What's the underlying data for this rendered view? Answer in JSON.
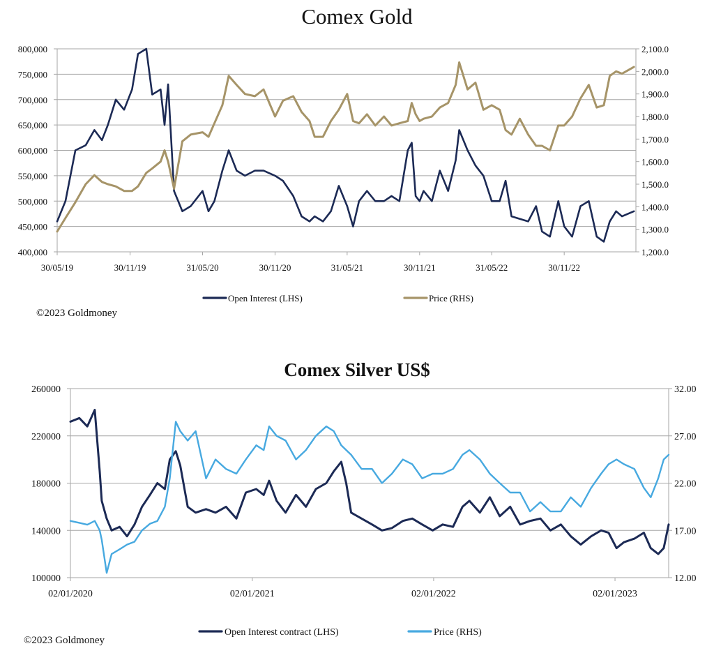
{
  "charts_text": {
    "gold_title": "Comex Gold",
    "silver_title": "Comex Silver US$",
    "gold_copyright": "©2023 Goldmoney",
    "silver_copyright": "©2023 Goldmoney"
  },
  "colors": {
    "gold_oi": "#1c2a55",
    "gold_price": "#a69468",
    "silver_oi": "#1c2a55",
    "silver_price": "#47a9e0",
    "grid": "#a6a6a6"
  },
  "chart_data": [
    {
      "type": "line",
      "title": "Comex Gold",
      "x_ticks": [
        "30/05/19",
        "30/11/19",
        "31/05/20",
        "30/11/20",
        "31/05/21",
        "30/11/21",
        "31/05/22",
        "30/11/22"
      ],
      "x_range": [
        "30/05/19",
        "30/05/23"
      ],
      "left_axis": {
        "ticks": [
          "400,000",
          "450,000",
          "500,000",
          "550,000",
          "600,000",
          "650,000",
          "700,000",
          "750,000",
          "800,000"
        ],
        "ylim": [
          400000,
          800000
        ]
      },
      "right_axis": {
        "ticks": [
          "1,200.0",
          "1,300.0",
          "1,400.0",
          "1,500.0",
          "1,600.0",
          "1,700.0",
          "1,800.0",
          "1,900.0",
          "2,000.0",
          "2,100.0"
        ],
        "ylim": [
          1200,
          2100
        ]
      },
      "grid": true,
      "legend_position": "bottom-center",
      "series": [
        {
          "name": "Open Interest (LHS)",
          "axis": "left",
          "x": [
            "2019-05-30",
            "2019-06-20",
            "2019-07-15",
            "2019-08-10",
            "2019-09-01",
            "2019-09-20",
            "2019-10-05",
            "2019-10-25",
            "2019-11-15",
            "2019-12-05",
            "2019-12-20",
            "2020-01-10",
            "2020-01-25",
            "2020-02-15",
            "2020-02-25",
            "2020-03-05",
            "2020-03-20",
            "2020-04-10",
            "2020-05-01",
            "2020-05-31",
            "2020-06-15",
            "2020-06-30",
            "2020-07-20",
            "2020-08-05",
            "2020-08-25",
            "2020-09-15",
            "2020-10-10",
            "2020-11-01",
            "2020-11-30",
            "2020-12-20",
            "2021-01-15",
            "2021-02-05",
            "2021-02-25",
            "2021-03-10",
            "2021-03-31",
            "2021-04-20",
            "2021-05-10",
            "2021-05-31",
            "2021-06-15",
            "2021-06-30",
            "2021-07-20",
            "2021-08-10",
            "2021-09-01",
            "2021-09-20",
            "2021-10-10",
            "2021-10-31",
            "2021-11-10",
            "2021-11-20",
            "2021-11-30",
            "2021-12-10",
            "2021-12-31",
            "2022-01-20",
            "2022-02-10",
            "2022-03-01",
            "2022-03-10",
            "2022-03-31",
            "2022-04-20",
            "2022-05-10",
            "2022-05-31",
            "2022-06-20",
            "2022-07-05",
            "2022-07-20",
            "2022-08-10",
            "2022-08-31",
            "2022-09-20",
            "2022-10-05",
            "2022-10-25",
            "2022-11-15",
            "2022-11-30",
            "2022-12-20",
            "2023-01-10",
            "2023-01-31",
            "2023-02-20",
            "2023-03-10",
            "2023-03-25",
            "2023-04-10",
            "2023-04-25",
            "2023-05-25"
          ],
          "values": [
            460000,
            500000,
            600000,
            610000,
            640000,
            620000,
            650000,
            700000,
            680000,
            720000,
            790000,
            800000,
            710000,
            720000,
            650000,
            730000,
            520000,
            480000,
            490000,
            520000,
            480000,
            500000,
            560000,
            600000,
            560000,
            550000,
            560000,
            560000,
            550000,
            540000,
            510000,
            470000,
            460000,
            470000,
            460000,
            480000,
            530000,
            490000,
            450000,
            500000,
            520000,
            500000,
            500000,
            510000,
            500000,
            600000,
            615000,
            510000,
            500000,
            520000,
            500000,
            560000,
            520000,
            580000,
            640000,
            600000,
            570000,
            550000,
            500000,
            500000,
            540000,
            470000,
            465000,
            460000,
            490000,
            440000,
            430000,
            500000,
            450000,
            430000,
            490000,
            500000,
            430000,
            420000,
            460000,
            480000,
            470000,
            480000
          ]
        },
        {
          "name": "Price (RHS)",
          "axis": "right",
          "x": [
            "2019-05-30",
            "2019-06-20",
            "2019-07-15",
            "2019-08-10",
            "2019-09-01",
            "2019-09-20",
            "2019-10-05",
            "2019-10-25",
            "2019-11-15",
            "2019-12-05",
            "2019-12-20",
            "2020-01-10",
            "2020-01-25",
            "2020-02-15",
            "2020-02-25",
            "2020-03-05",
            "2020-03-20",
            "2020-04-10",
            "2020-05-01",
            "2020-05-31",
            "2020-06-15",
            "2020-06-30",
            "2020-07-20",
            "2020-08-05",
            "2020-08-25",
            "2020-09-15",
            "2020-10-10",
            "2020-11-01",
            "2020-11-30",
            "2020-12-20",
            "2021-01-15",
            "2021-02-05",
            "2021-02-25",
            "2021-03-10",
            "2021-03-31",
            "2021-04-20",
            "2021-05-10",
            "2021-05-31",
            "2021-06-15",
            "2021-06-30",
            "2021-07-20",
            "2021-08-10",
            "2021-09-01",
            "2021-09-20",
            "2021-10-10",
            "2021-10-31",
            "2021-11-10",
            "2021-11-20",
            "2021-11-30",
            "2021-12-10",
            "2021-12-31",
            "2022-01-20",
            "2022-02-10",
            "2022-03-01",
            "2022-03-10",
            "2022-03-31",
            "2022-04-20",
            "2022-05-10",
            "2022-05-31",
            "2022-06-20",
            "2022-07-05",
            "2022-07-20",
            "2022-08-10",
            "2022-08-31",
            "2022-09-20",
            "2022-10-05",
            "2022-10-25",
            "2022-11-15",
            "2022-11-30",
            "2022-12-20",
            "2023-01-10",
            "2023-01-31",
            "2023-02-20",
            "2023-03-10",
            "2023-03-25",
            "2023-04-10",
            "2023-04-25",
            "2023-05-25"
          ],
          "values": [
            1290,
            1350,
            1420,
            1500,
            1540,
            1510,
            1500,
            1490,
            1470,
            1470,
            1490,
            1550,
            1570,
            1600,
            1650,
            1600,
            1480,
            1690,
            1720,
            1730,
            1710,
            1770,
            1850,
            1980,
            1940,
            1900,
            1890,
            1920,
            1800,
            1870,
            1890,
            1820,
            1780,
            1710,
            1710,
            1780,
            1830,
            1900,
            1780,
            1770,
            1810,
            1760,
            1800,
            1760,
            1770,
            1780,
            1860,
            1810,
            1780,
            1790,
            1800,
            1840,
            1860,
            1940,
            2040,
            1920,
            1950,
            1830,
            1850,
            1830,
            1740,
            1720,
            1790,
            1720,
            1670,
            1670,
            1650,
            1760,
            1760,
            1800,
            1880,
            1940,
            1840,
            1850,
            1980,
            2000,
            1990,
            2020
          ]
        }
      ]
    },
    {
      "type": "line",
      "title": "Comex Silver US$",
      "x_ticks": [
        "02/01/2020",
        "02/01/2021",
        "02/01/2022",
        "02/01/2023"
      ],
      "x_range": [
        "2020-01-02",
        "2023-04-20"
      ],
      "left_axis": {
        "ticks": [
          "100000",
          "140000",
          "180000",
          "220000",
          "260000"
        ],
        "ylim": [
          100000,
          260000
        ]
      },
      "right_axis": {
        "ticks": [
          "12.00",
          "17.00",
          "22.00",
          "27.00",
          "32.00"
        ],
        "ylim": [
          12,
          32
        ]
      },
      "grid": true,
      "legend_position": "bottom-center",
      "series": [
        {
          "name": "Open Interest contract (LHS)",
          "axis": "left",
          "x": [
            "2020-01-02",
            "2020-01-20",
            "2020-02-05",
            "2020-02-20",
            "2020-03-01",
            "2020-03-05",
            "2020-03-15",
            "2020-03-25",
            "2020-04-10",
            "2020-04-25",
            "2020-05-10",
            "2020-05-25",
            "2020-06-10",
            "2020-06-25",
            "2020-07-10",
            "2020-07-20",
            "2020-08-01",
            "2020-08-10",
            "2020-08-25",
            "2020-09-10",
            "2020-10-01",
            "2020-10-20",
            "2020-11-10",
            "2020-12-01",
            "2020-12-20",
            "2021-01-10",
            "2021-01-25",
            "2021-02-05",
            "2021-02-20",
            "2021-03-10",
            "2021-03-31",
            "2021-04-20",
            "2021-05-10",
            "2021-05-31",
            "2021-06-15",
            "2021-06-30",
            "2021-07-10",
            "2021-07-20",
            "2021-08-10",
            "2021-08-31",
            "2021-09-20",
            "2021-10-10",
            "2021-11-01",
            "2021-11-20",
            "2021-12-10",
            "2021-12-31",
            "2022-01-20",
            "2022-02-10",
            "2022-03-01",
            "2022-03-15",
            "2022-04-05",
            "2022-04-25",
            "2022-05-15",
            "2022-06-05",
            "2022-06-25",
            "2022-07-15",
            "2022-08-05",
            "2022-08-25",
            "2022-09-15",
            "2022-10-05",
            "2022-10-25",
            "2022-11-15",
            "2022-12-05",
            "2022-12-20",
            "2023-01-05",
            "2023-01-20",
            "2023-02-10",
            "2023-03-01",
            "2023-03-15",
            "2023-03-30",
            "2023-04-10",
            "2023-04-20"
          ],
          "values": [
            232000,
            235000,
            228000,
            242000,
            190000,
            165000,
            150000,
            140000,
            143000,
            135000,
            145000,
            160000,
            170000,
            180000,
            175000,
            200000,
            207000,
            195000,
            160000,
            155000,
            158000,
            155000,
            160000,
            150000,
            172000,
            175000,
            170000,
            182000,
            165000,
            155000,
            170000,
            160000,
            175000,
            180000,
            190000,
            198000,
            180000,
            155000,
            150000,
            145000,
            140000,
            142000,
            148000,
            150000,
            145000,
            140000,
            145000,
            143000,
            160000,
            165000,
            155000,
            168000,
            152000,
            160000,
            145000,
            148000,
            150000,
            140000,
            145000,
            135000,
            128000,
            135000,
            140000,
            138000,
            125000,
            130000,
            133000,
            138000,
            125000,
            120000,
            125000,
            145000
          ]
        },
        {
          "name": "Price (RHS)",
          "axis": "right",
          "x": [
            "2020-01-02",
            "2020-01-20",
            "2020-02-05",
            "2020-02-20",
            "2020-03-01",
            "2020-03-05",
            "2020-03-15",
            "2020-03-25",
            "2020-04-10",
            "2020-04-25",
            "2020-05-10",
            "2020-05-25",
            "2020-06-10",
            "2020-06-25",
            "2020-07-10",
            "2020-07-20",
            "2020-08-01",
            "2020-08-10",
            "2020-08-25",
            "2020-09-10",
            "2020-10-01",
            "2020-10-20",
            "2020-11-10",
            "2020-12-01",
            "2020-12-20",
            "2021-01-10",
            "2021-01-25",
            "2021-02-05",
            "2021-02-20",
            "2021-03-10",
            "2021-03-31",
            "2021-04-20",
            "2021-05-10",
            "2021-05-31",
            "2021-06-15",
            "2021-06-30",
            "2021-07-10",
            "2021-07-20",
            "2021-08-10",
            "2021-08-31",
            "2021-09-20",
            "2021-10-10",
            "2021-11-01",
            "2021-11-20",
            "2021-12-10",
            "2021-12-31",
            "2022-01-20",
            "2022-02-10",
            "2022-03-01",
            "2022-03-15",
            "2022-04-05",
            "2022-04-25",
            "2022-05-15",
            "2022-06-05",
            "2022-06-25",
            "2022-07-15",
            "2022-08-05",
            "2022-08-25",
            "2022-09-15",
            "2022-10-05",
            "2022-10-25",
            "2022-11-15",
            "2022-12-05",
            "2022-12-20",
            "2023-01-05",
            "2023-01-20",
            "2023-02-10",
            "2023-03-01",
            "2023-03-15",
            "2023-03-30",
            "2023-04-10",
            "2023-04-20"
          ],
          "values": [
            18.0,
            17.8,
            17.6,
            18.0,
            17.0,
            16.0,
            12.5,
            14.5,
            15.0,
            15.5,
            15.8,
            17.0,
            17.7,
            18.0,
            19.5,
            22.5,
            28.5,
            27.5,
            26.5,
            27.5,
            22.5,
            24.5,
            23.5,
            23.0,
            24.5,
            26.0,
            25.5,
            28.0,
            27.0,
            26.5,
            24.5,
            25.5,
            27.0,
            28.0,
            27.5,
            26.0,
            25.5,
            25.0,
            23.5,
            23.5,
            22.0,
            23.0,
            24.5,
            24.0,
            22.5,
            23.0,
            23.0,
            23.5,
            25.0,
            25.5,
            24.5,
            23.0,
            22.0,
            21.0,
            21.0,
            19.0,
            20.0,
            19.0,
            19.0,
            20.5,
            19.5,
            21.5,
            23.0,
            24.0,
            24.5,
            24.0,
            23.5,
            21.5,
            20.5,
            22.5,
            24.5,
            25.0
          ]
        }
      ]
    }
  ]
}
